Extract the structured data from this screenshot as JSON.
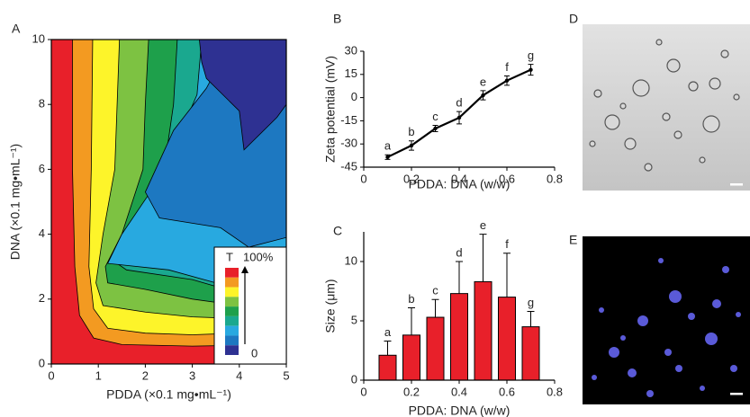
{
  "chart_data": [
    {
      "type": "contour",
      "panel": "A",
      "xlabel": "PDDA (×0.1 mg•mL⁻¹)",
      "ylabel": "DNA (×0.1 mg•mL⁻¹)",
      "xlim": [
        0,
        5
      ],
      "ylim": [
        0,
        10
      ],
      "xticks": [
        0,
        1,
        2,
        3,
        4,
        5
      ],
      "yticks": [
        0,
        2,
        4,
        6,
        8,
        10
      ],
      "levels": [
        {
          "color": "#e8202a",
          "x": [
            0,
            5,
            5,
            0
          ],
          "y": [
            0,
            0,
            10,
            10
          ]
        },
        {
          "color": "#f39a21",
          "x": [
            0.45,
            0.45,
            0.5,
            0.6,
            0.9,
            1.5,
            3,
            5,
            5
          ],
          "y": [
            10,
            6,
            3,
            1.5,
            0.8,
            0.6,
            0.55,
            0.6,
            10
          ]
        },
        {
          "color": "#fdf42a",
          "x": [
            0.88,
            0.85,
            0.8,
            0.9,
            1.2,
            2,
            3,
            5,
            5
          ],
          "y": [
            10,
            6,
            3,
            1.7,
            1.1,
            0.95,
            0.9,
            1.0,
            10
          ]
        },
        {
          "color": "#7dc242",
          "x": [
            1.45,
            1.4,
            1.35,
            1.1,
            0.95,
            1.1,
            2,
            3,
            4,
            5,
            5
          ],
          "y": [
            10,
            8,
            6,
            4,
            2.5,
            1.8,
            1.6,
            1.45,
            1.4,
            1.55,
            10
          ]
        },
        {
          "color": "#1ea04b",
          "x": [
            2.07,
            2.0,
            1.95,
            1.5,
            1.15,
            1.2,
            2,
            3,
            4,
            5,
            5
          ],
          "y": [
            10,
            8,
            6,
            4,
            3,
            2.5,
            2.3,
            2.0,
            1.8,
            1.75,
            10
          ]
        },
        {
          "color": "#1aa88f",
          "x": [
            2.68,
            2.6,
            2.4,
            1.8,
            1.3,
            1.6,
            3,
            4.2,
            5,
            5
          ],
          "y": [
            10,
            8,
            6,
            4.5,
            3.2,
            2.9,
            2.6,
            2.1,
            2.0,
            10
          ]
        },
        {
          "color": "#28a9e0",
          "x": [
            3.2,
            3.1,
            2.8,
            2.2,
            1.5,
            1.2,
            2.5,
            3.5,
            4.2,
            5,
            5
          ],
          "y": [
            10,
            8.3,
            7.3,
            5.5,
            4.0,
            3.1,
            2.9,
            2.5,
            2.3,
            2.4,
            10
          ]
        },
        {
          "color": "#1d78c1",
          "x": [
            3.85,
            3.3,
            2.6,
            2.0,
            2.3,
            3.6,
            4.2,
            5,
            5
          ],
          "y": [
            10,
            8.5,
            7.2,
            5.3,
            4.5,
            4.2,
            3.6,
            3.9,
            10
          ]
        },
        {
          "color": "#2e3192",
          "x": [
            3.15,
            3.2,
            3.3,
            4.0,
            4.1,
            4.8,
            5,
            5
          ],
          "y": [
            10,
            9.3,
            8.8,
            7.8,
            6.6,
            7.6,
            8.0,
            10
          ]
        }
      ],
      "legend": {
        "title": "T",
        "top_label": "100%",
        "bottom_label": "0"
      }
    },
    {
      "type": "line",
      "panel": "B",
      "xlabel": "PDDA: DNA (w/w)",
      "ylabel": "Zeta potential (mV)",
      "xlim": [
        0,
        0.8
      ],
      "ylim": [
        -45,
        30
      ],
      "xticks": [
        0,
        0.2,
        0.4,
        0.6,
        0.8
      ],
      "yticks": [
        -45,
        -30,
        -15,
        0,
        15,
        30
      ],
      "x": [
        0.1,
        0.2,
        0.3,
        0.4,
        0.5,
        0.6,
        0.7
      ],
      "series": [
        {
          "color": "#000000",
          "values": [
            -38.5,
            -31,
            -20,
            -13,
            1.5,
            11,
            18
          ],
          "errors": [
            1.5,
            3,
            2,
            4,
            3,
            3,
            3.5
          ]
        }
      ],
      "annotations": [
        "a",
        "b",
        "c",
        "d",
        "e",
        "f",
        "g"
      ]
    },
    {
      "type": "bar",
      "panel": "C",
      "xlabel": "PDDA: DNA (w/w)",
      "ylabel": "Size (μm)",
      "xlim": [
        0,
        0.8
      ],
      "ylim": [
        0,
        12.5
      ],
      "xticks": [
        0,
        0.2,
        0.4,
        0.6,
        0.8
      ],
      "yticks": [
        0,
        5,
        10
      ],
      "x": [
        0.1,
        0.2,
        0.3,
        0.4,
        0.5,
        0.6,
        0.7
      ],
      "series": [
        {
          "color": "#e8202a",
          "values": [
            2.1,
            3.8,
            5.3,
            7.3,
            8.3,
            7.0,
            4.5
          ],
          "errors": [
            1.2,
            2.3,
            1.5,
            2.7,
            4.0,
            3.7,
            1.3
          ]
        }
      ],
      "annotations": [
        "a",
        "b",
        "c",
        "d",
        "e",
        "f",
        "g"
      ]
    }
  ],
  "image_panels": [
    {
      "panel": "D"
    },
    {
      "panel": "E"
    }
  ]
}
